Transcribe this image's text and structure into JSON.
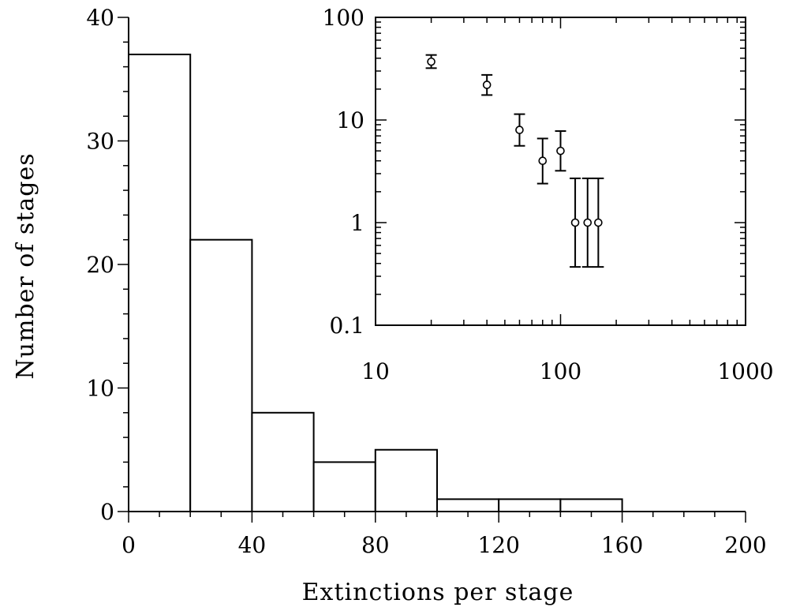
{
  "chart_data": [
    {
      "type": "bar",
      "bins": [
        {
          "x0": 0,
          "x1": 20,
          "count": 37
        },
        {
          "x0": 20,
          "x1": 40,
          "count": 22
        },
        {
          "x0": 40,
          "x1": 60,
          "count": 8
        },
        {
          "x0": 60,
          "x1": 80,
          "count": 4
        },
        {
          "x0": 80,
          "x1": 100,
          "count": 5
        },
        {
          "x0": 100,
          "x1": 120,
          "count": 1
        },
        {
          "x0": 120,
          "x1": 140,
          "count": 1
        },
        {
          "x0": 140,
          "x1": 160,
          "count": 1
        }
      ],
      "xlabel": "Extinctions per stage",
      "ylabel": "Number of stages",
      "xlim": [
        0,
        200
      ],
      "ylim": [
        0,
        40
      ],
      "xticks": [
        "0",
        "40",
        "80",
        "120",
        "160",
        "200"
      ],
      "yticks": [
        "0",
        "10",
        "20",
        "30",
        "40"
      ]
    },
    {
      "type": "scatter",
      "xscale": "log",
      "yscale": "log",
      "xlim": [
        10,
        1000
      ],
      "ylim": [
        0.1,
        100
      ],
      "xticks": [
        "10",
        "100",
        "1000"
      ],
      "yticks": [
        "0.1",
        "1",
        "10",
        "100"
      ],
      "points": [
        {
          "x": 20,
          "y": 37,
          "ylo": 32,
          "yhi": 43
        },
        {
          "x": 40,
          "y": 22,
          "ylo": 17.5,
          "yhi": 27.5
        },
        {
          "x": 60,
          "y": 8,
          "ylo": 5.6,
          "yhi": 11.4
        },
        {
          "x": 80,
          "y": 4,
          "ylo": 2.4,
          "yhi": 6.6
        },
        {
          "x": 100,
          "y": 5,
          "ylo": 3.2,
          "yhi": 7.8
        },
        {
          "x": 120,
          "y": 1,
          "ylo": 0.37,
          "yhi": 2.7
        },
        {
          "x": 140,
          "y": 1,
          "ylo": 0.37,
          "yhi": 2.7
        },
        {
          "x": 160,
          "y": 1,
          "ylo": 0.37,
          "yhi": 2.7
        }
      ]
    }
  ]
}
